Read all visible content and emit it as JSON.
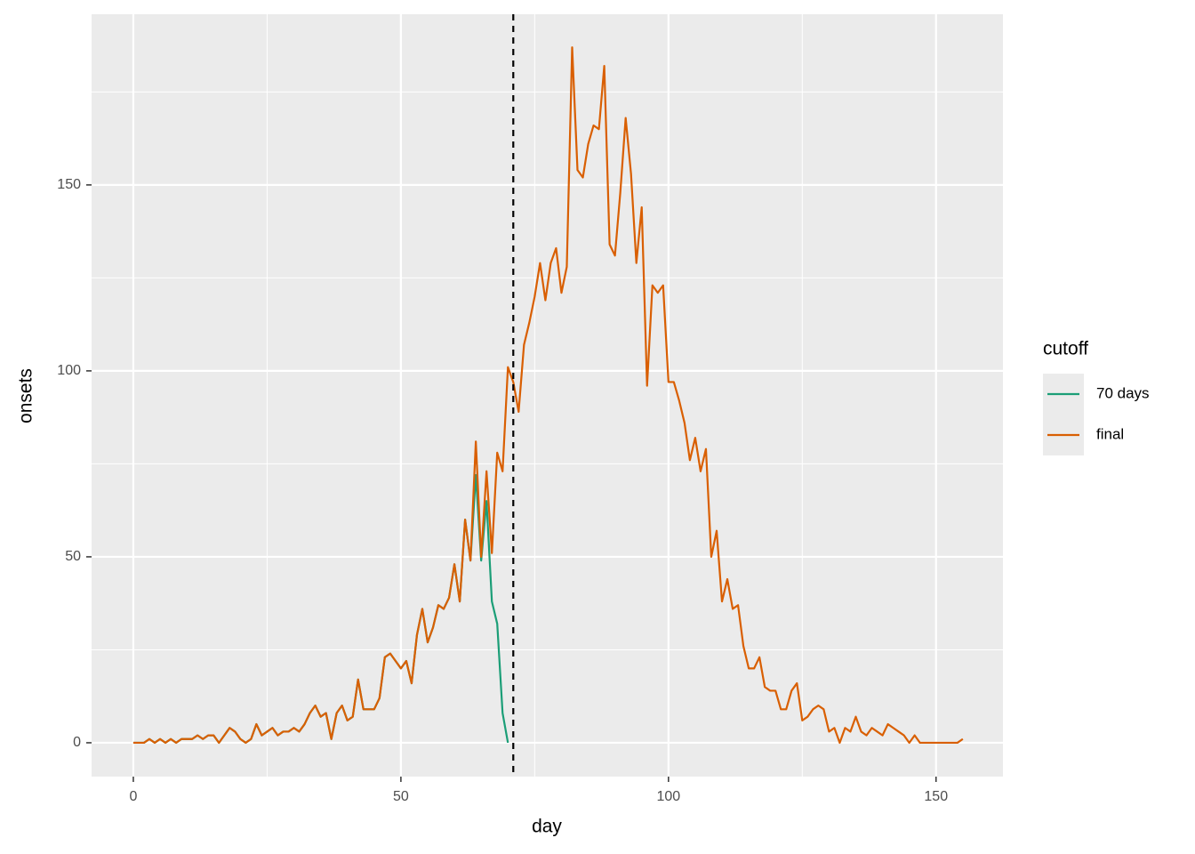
{
  "chart_data": {
    "type": "line",
    "xlabel": "day",
    "ylabel": "onsets",
    "x": [
      0,
      1,
      2,
      3,
      4,
      5,
      6,
      7,
      8,
      9,
      10,
      11,
      12,
      13,
      14,
      15,
      16,
      17,
      18,
      19,
      20,
      21,
      22,
      23,
      24,
      25,
      26,
      27,
      28,
      29,
      30,
      31,
      32,
      33,
      34,
      35,
      36,
      37,
      38,
      39,
      40,
      41,
      42,
      43,
      44,
      45,
      46,
      47,
      48,
      49,
      50,
      51,
      52,
      53,
      54,
      55,
      56,
      57,
      58,
      59,
      60,
      61,
      62,
      63,
      64,
      65,
      66,
      67,
      68,
      69,
      70,
      71,
      72,
      73,
      74,
      75,
      76,
      77,
      78,
      79,
      80,
      81,
      82,
      83,
      84,
      85,
      86,
      87,
      88,
      89,
      90,
      91,
      92,
      93,
      94,
      95,
      96,
      97,
      98,
      99,
      100,
      101,
      102,
      103,
      104,
      105,
      106,
      107,
      108,
      109,
      110,
      111,
      112,
      113,
      114,
      115,
      116,
      117,
      118,
      119,
      120,
      121,
      122,
      123,
      124,
      125,
      126,
      127,
      128,
      129,
      130,
      131,
      132,
      133,
      134,
      135,
      136,
      137,
      138,
      139,
      140,
      141,
      142,
      143,
      144,
      145,
      146,
      147,
      148,
      149,
      150,
      151,
      152,
      153,
      154,
      155
    ],
    "series": [
      {
        "name": "70 days",
        "color": "#1b9e77",
        "values": [
          0,
          0,
          0,
          1,
          0,
          1,
          0,
          1,
          0,
          1,
          1,
          1,
          2,
          1,
          2,
          2,
          0,
          2,
          4,
          3,
          1,
          0,
          1,
          5,
          2,
          3,
          4,
          2,
          3,
          3,
          4,
          3,
          5,
          8,
          10,
          7,
          8,
          1,
          8,
          10,
          6,
          7,
          17,
          9,
          9,
          9,
          12,
          23,
          24,
          22,
          20,
          22,
          16,
          29,
          36,
          27,
          31,
          37,
          36,
          39,
          48,
          38,
          60,
          49,
          72,
          49,
          65,
          38,
          32,
          8,
          0,
          null,
          null,
          null,
          null,
          null,
          null,
          null,
          null,
          null,
          null,
          null,
          null,
          null,
          null,
          null,
          null,
          null,
          null,
          null,
          null,
          null,
          null,
          null,
          null,
          null,
          null,
          null,
          null,
          null,
          null,
          null,
          null,
          null,
          null,
          null,
          null,
          null,
          null,
          null,
          null,
          null,
          null,
          null,
          null,
          null,
          null,
          null,
          null,
          null,
          null,
          null,
          null,
          null,
          null,
          null,
          null,
          null,
          null,
          null,
          null,
          null,
          null,
          null,
          null,
          null,
          null,
          null,
          null,
          null,
          null,
          null,
          null,
          null,
          null,
          null,
          null,
          null,
          null,
          null,
          null,
          null,
          null,
          null,
          null,
          null
        ]
      },
      {
        "name": "final",
        "color": "#d95f02",
        "values": [
          0,
          0,
          0,
          1,
          0,
          1,
          0,
          1,
          0,
          1,
          1,
          1,
          2,
          1,
          2,
          2,
          0,
          2,
          4,
          3,
          1,
          0,
          1,
          5,
          2,
          3,
          4,
          2,
          3,
          3,
          4,
          3,
          5,
          8,
          10,
          7,
          8,
          1,
          8,
          10,
          6,
          7,
          17,
          9,
          9,
          9,
          12,
          23,
          24,
          22,
          20,
          22,
          16,
          29,
          36,
          27,
          31,
          37,
          36,
          39,
          48,
          38,
          60,
          49,
          81,
          50,
          73,
          51,
          78,
          73,
          101,
          97,
          89,
          107,
          113,
          120,
          129,
          119,
          129,
          133,
          121,
          128,
          187,
          154,
          152,
          161,
          166,
          165,
          182,
          134,
          131,
          148,
          168,
          153,
          129,
          144,
          96,
          123,
          121,
          123,
          97,
          97,
          92,
          86,
          76,
          82,
          73,
          79,
          50,
          57,
          38,
          44,
          36,
          37,
          26,
          20,
          20,
          23,
          15,
          14,
          14,
          9,
          9,
          14,
          16,
          6,
          7,
          9,
          10,
          9,
          3,
          4,
          0,
          4,
          3,
          7,
          3,
          2,
          4,
          3,
          2,
          5,
          4,
          3,
          2,
          0,
          2,
          0,
          0,
          0,
          0,
          0,
          0,
          0,
          0,
          1
        ]
      }
    ],
    "vline": 71,
    "xlim": [
      -7.8,
      162.5
    ],
    "xticks": [
      0,
      50,
      100,
      150
    ],
    "xminor": [
      25,
      75,
      125
    ],
    "ylim": [
      -9.1,
      195.9
    ],
    "yticks": [
      0,
      50,
      100,
      150
    ],
    "yminor": [
      25,
      75,
      125,
      175
    ],
    "grid": true,
    "legend_title": "cutoff",
    "legend": "right"
  }
}
